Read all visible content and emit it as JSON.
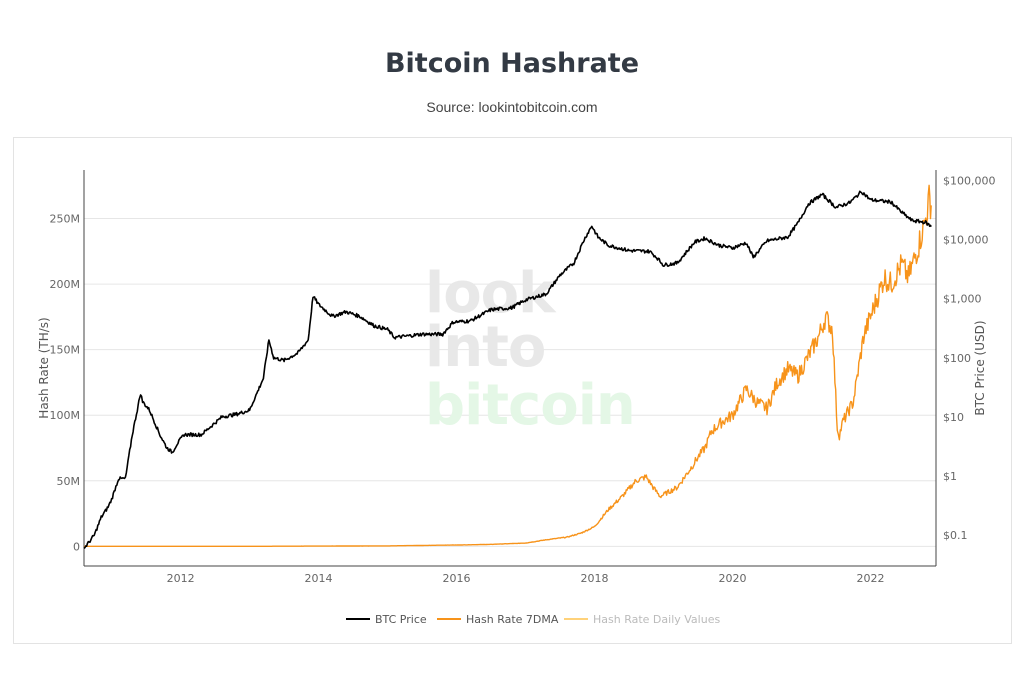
{
  "header": {
    "title": "Bitcoin Hashrate",
    "subtitle": "Source: lookintobitcoin.com"
  },
  "watermark": {
    "line1": "look",
    "line2": "into",
    "line3": "bitcoin"
  },
  "colors": {
    "btc_price": "#000000",
    "hash_7dma": "#f7931a",
    "hash_daily": "#ffd27a",
    "grid": "#e6e6e6"
  },
  "chart_data": {
    "type": "line",
    "title": "Bitcoin Hashrate",
    "subtitle": "Source: lookintobitcoin.com",
    "x_ticks": [
      "2012",
      "2014",
      "2016",
      "2018",
      "2020",
      "2022"
    ],
    "xlim": [
      2010.6,
      2022.95
    ],
    "y_left": {
      "label": "Hash Rate (TH/s)",
      "ticks": [
        "0",
        "50M",
        "100M",
        "150M",
        "200M",
        "250M"
      ],
      "range": [
        -15000000,
        287000000
      ]
    },
    "y_right": {
      "label": "BTC Price (USD)",
      "scale": "log",
      "ticks": [
        "$0.1",
        "$1",
        "$10",
        "$100",
        "$1,000",
        "$10,000",
        "$100,000"
      ],
      "range": [
        0.03,
        150000
      ]
    },
    "legend": {
      "placement": "bottom"
    },
    "grid": true,
    "series": [
      {
        "name": "BTC Price",
        "axis": "right",
        "x": [
          2010.6,
          2010.65,
          2010.75,
          2010.85,
          2010.95,
          2011.0,
          2011.1,
          2011.2,
          2011.3,
          2011.42,
          2011.45,
          2011.55,
          2011.7,
          2011.8,
          2011.88,
          2011.95,
          2012.05,
          2012.3,
          2012.6,
          2012.8,
          2013.0,
          2013.2,
          2013.28,
          2013.35,
          2013.5,
          2013.7,
          2013.85,
          2013.92,
          2014.0,
          2014.2,
          2014.4,
          2014.6,
          2014.8,
          2015.0,
          2015.1,
          2015.5,
          2015.8,
          2015.95,
          2016.2,
          2016.5,
          2016.8,
          2017.0,
          2017.3,
          2017.5,
          2017.7,
          2017.85,
          2017.96,
          2018.05,
          2018.2,
          2018.5,
          2018.8,
          2018.9,
          2019.0,
          2019.2,
          2019.45,
          2019.6,
          2019.8,
          2020.0,
          2020.2,
          2020.3,
          2020.5,
          2020.8,
          2020.95,
          2021.1,
          2021.3,
          2021.5,
          2021.7,
          2021.87,
          2022.0,
          2022.3,
          2022.45,
          2022.6,
          2022.8,
          2022.88
        ],
        "values": [
          0.06,
          0.07,
          0.1,
          0.2,
          0.3,
          0.4,
          0.9,
          0.9,
          5.0,
          25.0,
          18.0,
          13.0,
          5.0,
          3.0,
          2.5,
          3.5,
          5.0,
          5.0,
          10.0,
          11.0,
          13.0,
          45.0,
          200.0,
          100.0,
          90.0,
          120.0,
          200.0,
          1100.0,
          800.0,
          500.0,
          600.0,
          500.0,
          350.0,
          300.0,
          220.0,
          250.0,
          250.0,
          400.0,
          420.0,
          650.0,
          700.0,
          950.0,
          1200.0,
          2500.0,
          4000.0,
          10000.0,
          17000.0,
          11000.0,
          8000.0,
          6500.0,
          6300.0,
          5000.0,
          3700.0,
          4000.0,
          9000.0,
          10500.0,
          8000.0,
          7200.0,
          8800.0,
          5000.0,
          9500.0,
          11000.0,
          19000.0,
          40000.0,
          58000.0,
          35000.0,
          42000.0,
          65000.0,
          47000.0,
          43000.0,
          29000.0,
          21000.0,
          19500.0,
          16500.0
        ]
      },
      {
        "name": "Hash Rate 7DMA",
        "axis": "left",
        "x": [
          2010.6,
          2013.0,
          2015.0,
          2016.0,
          2016.5,
          2017.0,
          2017.3,
          2017.6,
          2017.8,
          2018.0,
          2018.2,
          2018.4,
          2018.6,
          2018.75,
          2018.85,
          2018.95,
          2019.2,
          2019.4,
          2019.5,
          2019.6,
          2019.7,
          2019.85,
          2020.0,
          2020.2,
          2020.35,
          2020.5,
          2020.65,
          2020.8,
          2020.95,
          2021.1,
          2021.25,
          2021.35,
          2021.45,
          2021.52,
          2021.55,
          2021.6,
          2021.75,
          2021.9,
          2022.0,
          2022.2,
          2022.3,
          2022.45,
          2022.55,
          2022.7,
          2022.8,
          2022.85,
          2022.88
        ],
        "values": [
          0,
          5000,
          350000,
          1000000,
          1500000,
          2500000,
          5000000,
          7000000,
          10000000,
          15000000,
          28000000,
          38000000,
          50000000,
          53000000,
          45000000,
          38000000,
          45000000,
          60000000,
          68000000,
          75000000,
          88000000,
          95000000,
          100000000,
          120000000,
          110000000,
          105000000,
          125000000,
          135000000,
          130000000,
          145000000,
          160000000,
          175000000,
          165000000,
          90000000,
          85000000,
          95000000,
          110000000,
          160000000,
          175000000,
          205000000,
          200000000,
          215000000,
          205000000,
          230000000,
          250000000,
          265000000,
          260000000
        ]
      },
      {
        "name": "Hash Rate Daily Values",
        "axis": "left",
        "x": [],
        "values": []
      }
    ]
  }
}
